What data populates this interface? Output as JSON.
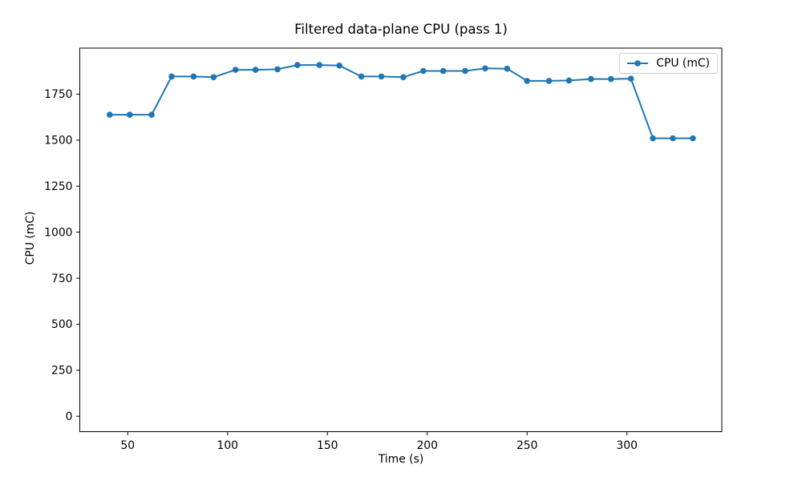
{
  "figure": {
    "title": "Filtered data-plane CPU (pass 1)",
    "xlabel": "Time (s)",
    "ylabel": "CPU (mC)",
    "legend": {
      "label": "CPU (mC)"
    }
  },
  "chart_data": {
    "type": "line",
    "title": "Filtered data-plane CPU (pass 1)",
    "xlabel": "Time (s)",
    "ylabel": "CPU (mC)",
    "legend_entries": [
      "CPU (mC)"
    ],
    "legend_position": "upper right",
    "line_color": "#1f77b4",
    "marker": "o",
    "grid": false,
    "xlim": [
      26,
      347.5
    ],
    "ylim": [
      -84,
      2000
    ],
    "x_ticks": [
      50,
      100,
      150,
      200,
      250,
      300
    ],
    "y_ticks": [
      0,
      250,
      500,
      750,
      1000,
      1250,
      1500,
      1750
    ],
    "series": [
      {
        "name": "CPU (mC)",
        "x": [
          41,
          51,
          62,
          72,
          83,
          93,
          104,
          114,
          125,
          135,
          146,
          156,
          167,
          177,
          188,
          198,
          208,
          219,
          229,
          240,
          250,
          261,
          271,
          282,
          292,
          302,
          313,
          323,
          333
        ],
        "y": [
          1638,
          1638,
          1638,
          1846,
          1846,
          1842,
          1882,
          1882,
          1885,
          1908,
          1908,
          1905,
          1846,
          1846,
          1842,
          1876,
          1876,
          1876,
          1890,
          1888,
          1822,
          1822,
          1824,
          1832,
          1832,
          1834,
          1510,
          1510,
          1510
        ]
      }
    ]
  }
}
